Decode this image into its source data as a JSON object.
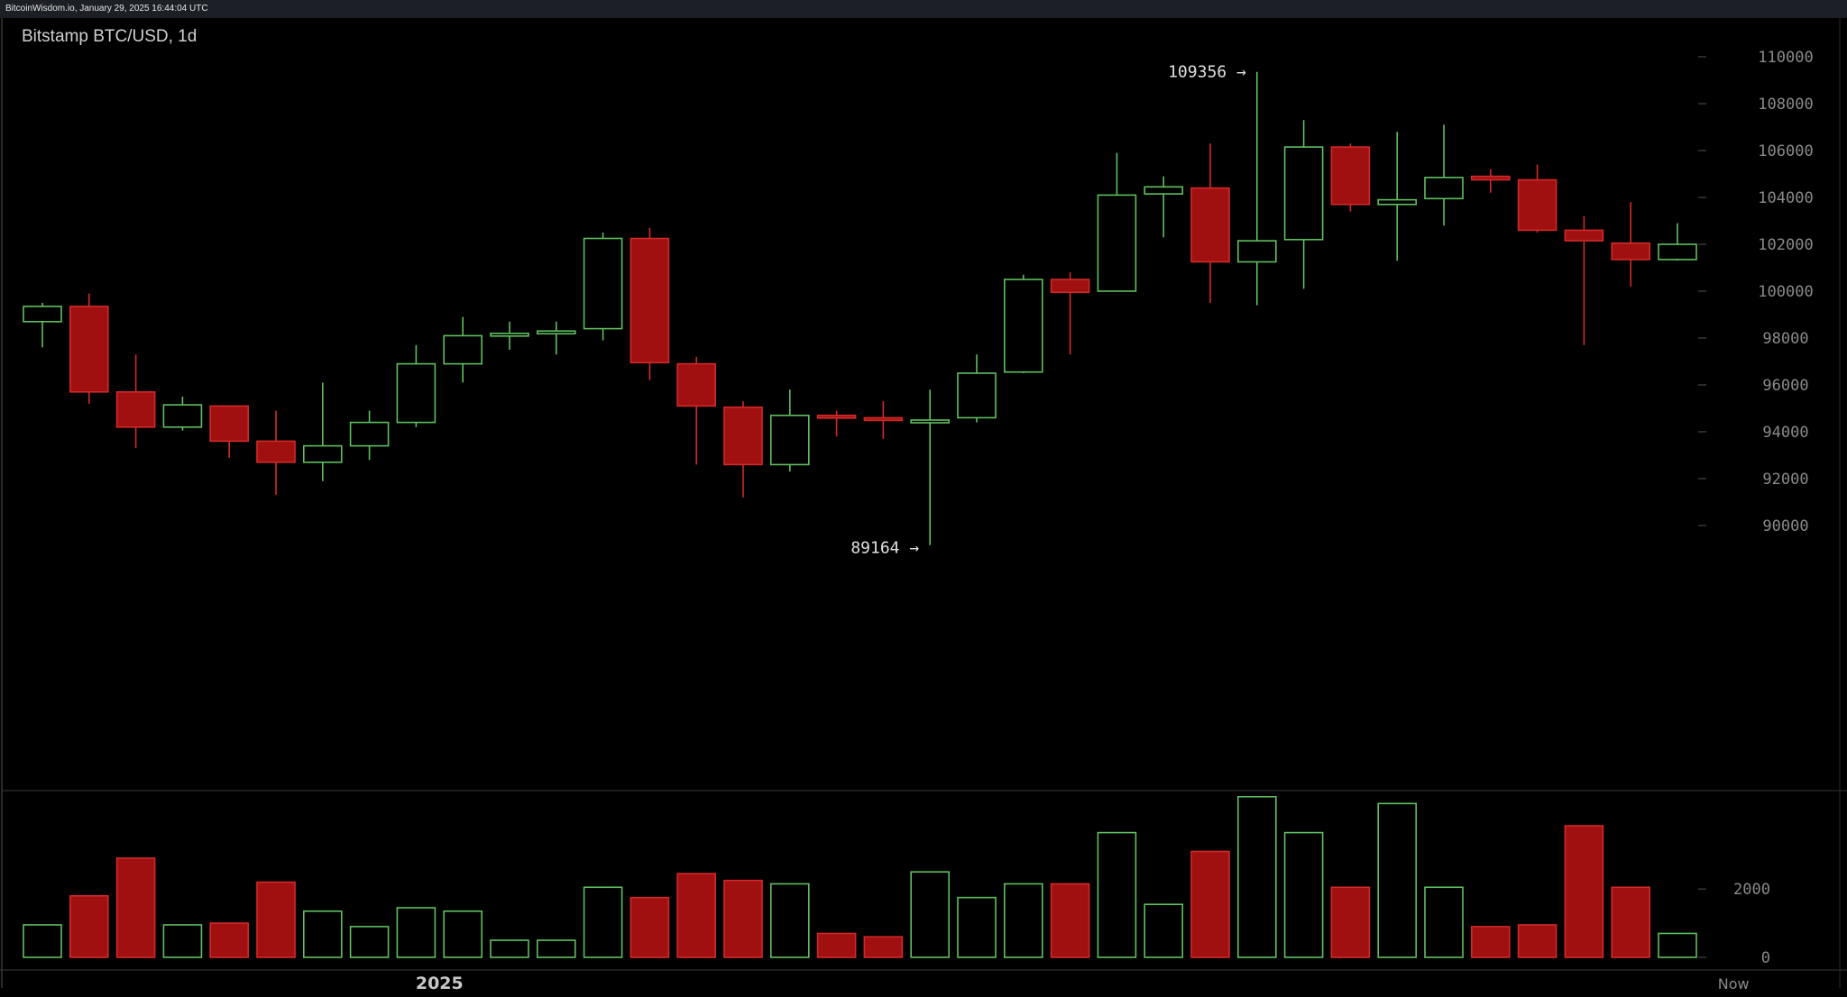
{
  "header": {
    "site_timestamp": "BitcoinWisdom.io, January 29, 2025 16:44:04 UTC"
  },
  "chart_data": {
    "type": "candlestick",
    "title": "Bitstamp BTC/USD, 1d",
    "price_axis": {
      "ylim": [
        88500,
        110500
      ],
      "ticks": [
        90000,
        92000,
        94000,
        96000,
        98000,
        100000,
        102000,
        104000,
        106000,
        108000,
        110000
      ]
    },
    "volume_axis": {
      "ylim": [
        0,
        4800
      ],
      "ticks": [
        0,
        2000
      ]
    },
    "x_labels": [
      "2025",
      "Now"
    ],
    "x_label_positions": [
      8.5,
      36.2
    ],
    "annotations": [
      {
        "text": "109356 →",
        "candle": 26,
        "price": 109356
      },
      {
        "text": "89164 →",
        "candle": 19,
        "price": 89164
      }
    ],
    "colors": {
      "up": "#5fbf5f",
      "down": "#a01010",
      "down_stroke": "#d02a2a",
      "axis_text": "#8a8a8a",
      "label_text": "#e0e0e0"
    },
    "candles": [
      {
        "open": 98700,
        "high": 99500,
        "low": 97600,
        "close": 99350,
        "volume": 950
      },
      {
        "open": 99350,
        "high": 99900,
        "low": 95200,
        "close": 95700,
        "volume": 1800
      },
      {
        "open": 95700,
        "high": 97300,
        "low": 93300,
        "close": 94200,
        "volume": 2900
      },
      {
        "open": 94200,
        "high": 95500,
        "low": 94050,
        "close": 95150,
        "volume": 950
      },
      {
        "open": 95100,
        "high": 95100,
        "low": 92900,
        "close": 93600,
        "volume": 1000
      },
      {
        "open": 93600,
        "high": 94900,
        "low": 91300,
        "close": 92700,
        "volume": 2200
      },
      {
        "open": 92700,
        "high": 96100,
        "low": 91900,
        "close": 93400,
        "volume": 1350
      },
      {
        "open": 93400,
        "high": 94900,
        "low": 92800,
        "close": 94400,
        "volume": 900
      },
      {
        "open": 94400,
        "high": 97700,
        "low": 94200,
        "close": 96900,
        "volume": 1450
      },
      {
        "open": 96900,
        "high": 98900,
        "low": 96100,
        "close": 98100,
        "volume": 1350
      },
      {
        "open": 98100,
        "high": 98700,
        "low": 97500,
        "close": 98200,
        "volume": 500
      },
      {
        "open": 98200,
        "high": 98700,
        "low": 97300,
        "close": 98300,
        "volume": 500
      },
      {
        "open": 98400,
        "high": 102500,
        "low": 97900,
        "close": 102250,
        "volume": 2050
      },
      {
        "open": 102250,
        "high": 102700,
        "low": 96200,
        "close": 96950,
        "volume": 1750
      },
      {
        "open": 96900,
        "high": 97200,
        "low": 92600,
        "close": 95100,
        "volume": 2450
      },
      {
        "open": 95050,
        "high": 95300,
        "low": 91200,
        "close": 92600,
        "volume": 2250
      },
      {
        "open": 92600,
        "high": 95800,
        "low": 92300,
        "close": 94700,
        "volume": 2150
      },
      {
        "open": 94700,
        "high": 94900,
        "low": 93800,
        "close": 94600,
        "volume": 700
      },
      {
        "open": 94600,
        "high": 95300,
        "low": 93700,
        "close": 94500,
        "volume": 600
      },
      {
        "open": 94500,
        "high": 95800,
        "low": 89164,
        "close": 94500,
        "volume": 2500
      },
      {
        "open": 94600,
        "high": 97300,
        "low": 94400,
        "close": 96500,
        "volume": 1750
      },
      {
        "open": 96550,
        "high": 100700,
        "low": 96500,
        "close": 100500,
        "volume": 2150
      },
      {
        "open": 100500,
        "high": 100800,
        "low": 97300,
        "close": 99950,
        "volume": 2150
      },
      {
        "open": 100000,
        "high": 105900,
        "low": 100000,
        "close": 104100,
        "volume": 3650
      },
      {
        "open": 104150,
        "high": 104900,
        "low": 102300,
        "close": 104450,
        "volume": 1550
      },
      {
        "open": 104400,
        "high": 106300,
        "low": 99500,
        "close": 101250,
        "volume": 3100
      },
      {
        "open": 101250,
        "high": 109356,
        "low": 99400,
        "close": 102150,
        "volume": 4700
      },
      {
        "open": 102200,
        "high": 107300,
        "low": 100100,
        "close": 106150,
        "volume": 3650
      },
      {
        "open": 106150,
        "high": 106300,
        "low": 103400,
        "close": 103700,
        "volume": 2050
      },
      {
        "open": 103700,
        "high": 106800,
        "low": 101300,
        "close": 103900,
        "volume": 4500
      },
      {
        "open": 103950,
        "high": 107100,
        "low": 102800,
        "close": 104850,
        "volume": 2050
      },
      {
        "open": 104900,
        "high": 105200,
        "low": 104200,
        "close": 104750,
        "volume": 900
      },
      {
        "open": 104750,
        "high": 105400,
        "low": 102500,
        "close": 102600,
        "volume": 950
      },
      {
        "open": 102600,
        "high": 103200,
        "low": 97700,
        "close": 102150,
        "volume": 3850
      },
      {
        "open": 102050,
        "high": 103800,
        "low": 100200,
        "close": 101350,
        "volume": 2050
      },
      {
        "open": 101350,
        "high": 102900,
        "low": 101300,
        "close": 102000,
        "volume": 700
      }
    ]
  }
}
